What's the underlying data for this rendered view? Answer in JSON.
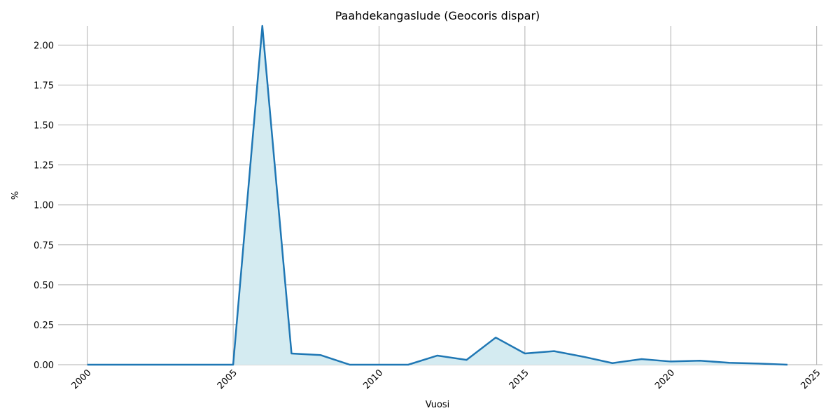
{
  "chart_data": {
    "type": "line",
    "title": "Paahdekangaslude (Geocoris dispar)",
    "x_label": "Vuosi",
    "y_label": "%",
    "x": [
      2000,
      2001,
      2002,
      2003,
      2004,
      2005,
      2006,
      2007,
      2008,
      2009,
      2010,
      2011,
      2012,
      2013,
      2014,
      2015,
      2016,
      2017,
      2018,
      2019,
      2020,
      2021,
      2022,
      2023,
      2024
    ],
    "series": [
      {
        "name": "Paahdekangaslude",
        "color": "#1f77b4",
        "fill": "#d4ebf1",
        "values": [
          0,
          0,
          0,
          0,
          0,
          0,
          2.12,
          0.07,
          0.06,
          0,
          0,
          0,
          0.057,
          0.03,
          0.17,
          0.07,
          0.085,
          0.05,
          0.01,
          0.035,
          0.02,
          0.025,
          0.012,
          0.007,
          0
        ]
      }
    ],
    "xlim": [
      1999,
      2025.2
    ],
    "ylim": [
      0,
      2.12
    ],
    "xticks": [
      2000,
      2005,
      2010,
      2015,
      2020,
      2025
    ],
    "yticks": [
      {
        "value": 0,
        "label": "0.00"
      },
      {
        "value": 0.25,
        "label": "0.25"
      },
      {
        "value": 0.5,
        "label": "0.50"
      },
      {
        "value": 0.75,
        "label": "0.75"
      },
      {
        "value": 1,
        "label": "1.00"
      },
      {
        "value": 1.25,
        "label": "1.25"
      },
      {
        "value": 1.5,
        "label": "1.50"
      },
      {
        "value": 1.75,
        "label": "1.75"
      },
      {
        "value": 2,
        "label": "2.00"
      }
    ],
    "grid": true
  }
}
